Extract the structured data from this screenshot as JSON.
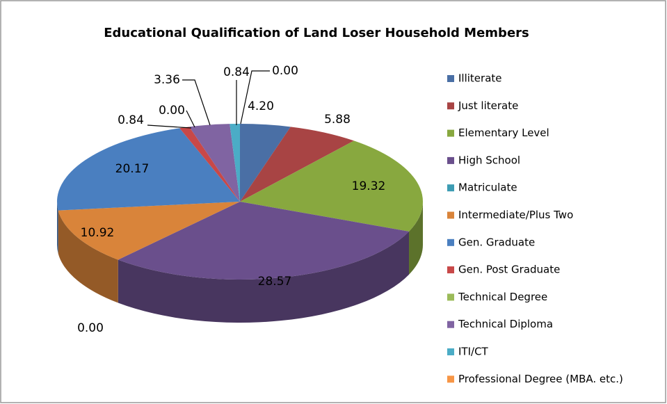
{
  "chart_data": {
    "type": "pie3d",
    "title": "Educational Qualification of Land Loser Household Members",
    "categories": [
      "Illiterate",
      "Just literate",
      "Elementary Level",
      "High School",
      "Matriculate",
      "Intermediate/Plus Two",
      "Gen. Graduate",
      "Gen. Post Graduate",
      "Technical Degree",
      "Technical Diploma",
      "ITI/CT",
      "Professional Degree (MBA. etc.)"
    ],
    "values": [
      4.2,
      5.88,
      19.32,
      28.57,
      0,
      10.92,
      20.17,
      0.84,
      0,
      3.36,
      0.84,
      0
    ],
    "value_labels": [
      "4.20",
      "5.88",
      "19.32",
      "28.57",
      "0.00",
      "10.92",
      "20.17",
      "0.84",
      "0.00",
      "3.36",
      "0.84",
      "0.00"
    ],
    "colors": [
      "#4a6fa5",
      "#a84444",
      "#88a83f",
      "#6a4f8c",
      "#3d9cb3",
      "#d9843a",
      "#4a7fc0",
      "#c84848",
      "#9bbb59",
      "#8064a2",
      "#4bacc6",
      "#f79646"
    ],
    "legend": "right"
  }
}
